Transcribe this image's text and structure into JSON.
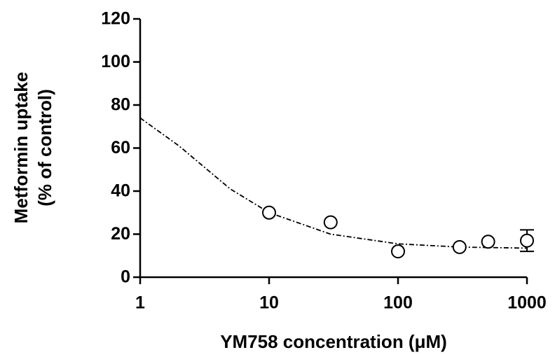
{
  "chart_data": {
    "type": "scatter",
    "y_label_lines": [
      "Metformin uptake",
      "(% of control)"
    ],
    "x_label": "YM758 concentration (μM)",
    "x_log": true,
    "xlim": [
      1,
      1000
    ],
    "xticks": [
      1,
      10,
      100,
      1000
    ],
    "ylim": [
      0,
      120
    ],
    "yticks": [
      0,
      20,
      40,
      60,
      80,
      100,
      120
    ],
    "color": "#000000",
    "points": {
      "x": [
        10,
        30,
        100,
        300,
        500,
        1000
      ],
      "values": [
        30,
        25.5,
        12,
        14,
        16.5,
        17
      ],
      "errors": [
        null,
        null,
        null,
        null,
        null,
        5
      ]
    },
    "fit": {
      "x": [
        1,
        2,
        5,
        10,
        30,
        100,
        300,
        1000
      ],
      "values": [
        74,
        61,
        41,
        30,
        20,
        15.5,
        14,
        13.5
      ]
    }
  }
}
